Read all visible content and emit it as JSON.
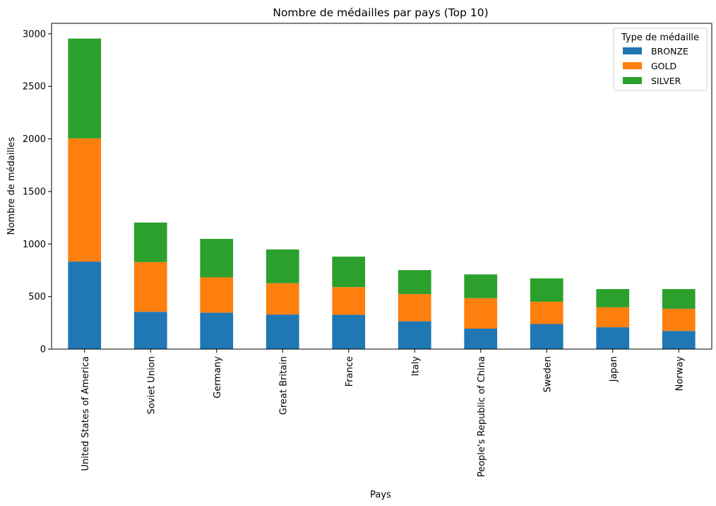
{
  "chart_data": {
    "type": "bar",
    "stacked": true,
    "title": "Nombre de médailles par pays (Top 10)",
    "xlabel": "Pays",
    "ylabel": "Nombre de médailles",
    "ylim": [
      0,
      3100
    ],
    "yticks": [
      0,
      500,
      1000,
      1500,
      2000,
      2500,
      3000
    ],
    "grid": false,
    "legend_position": "top-right",
    "legend_title": "Type de médaille",
    "categories": [
      "United States of America",
      "Soviet Union",
      "Germany",
      "Great Britain",
      "France",
      "Italy",
      "People's Republic of China",
      "Sweden",
      "Japan",
      "Norway"
    ],
    "series": [
      {
        "name": "BRONZE",
        "color": "#1f77b4",
        "values": [
          833,
          355,
          347,
          329,
          327,
          265,
          195,
          239,
          208,
          173
        ]
      },
      {
        "name": "GOLD",
        "color": "#ff7f0e",
        "values": [
          1172,
          473,
          336,
          298,
          263,
          259,
          290,
          212,
          190,
          211
        ]
      },
      {
        "name": "SILVER",
        "color": "#2ca02c",
        "values": [
          950,
          376,
          366,
          321,
          290,
          228,
          226,
          222,
          173,
          187
        ]
      }
    ]
  }
}
